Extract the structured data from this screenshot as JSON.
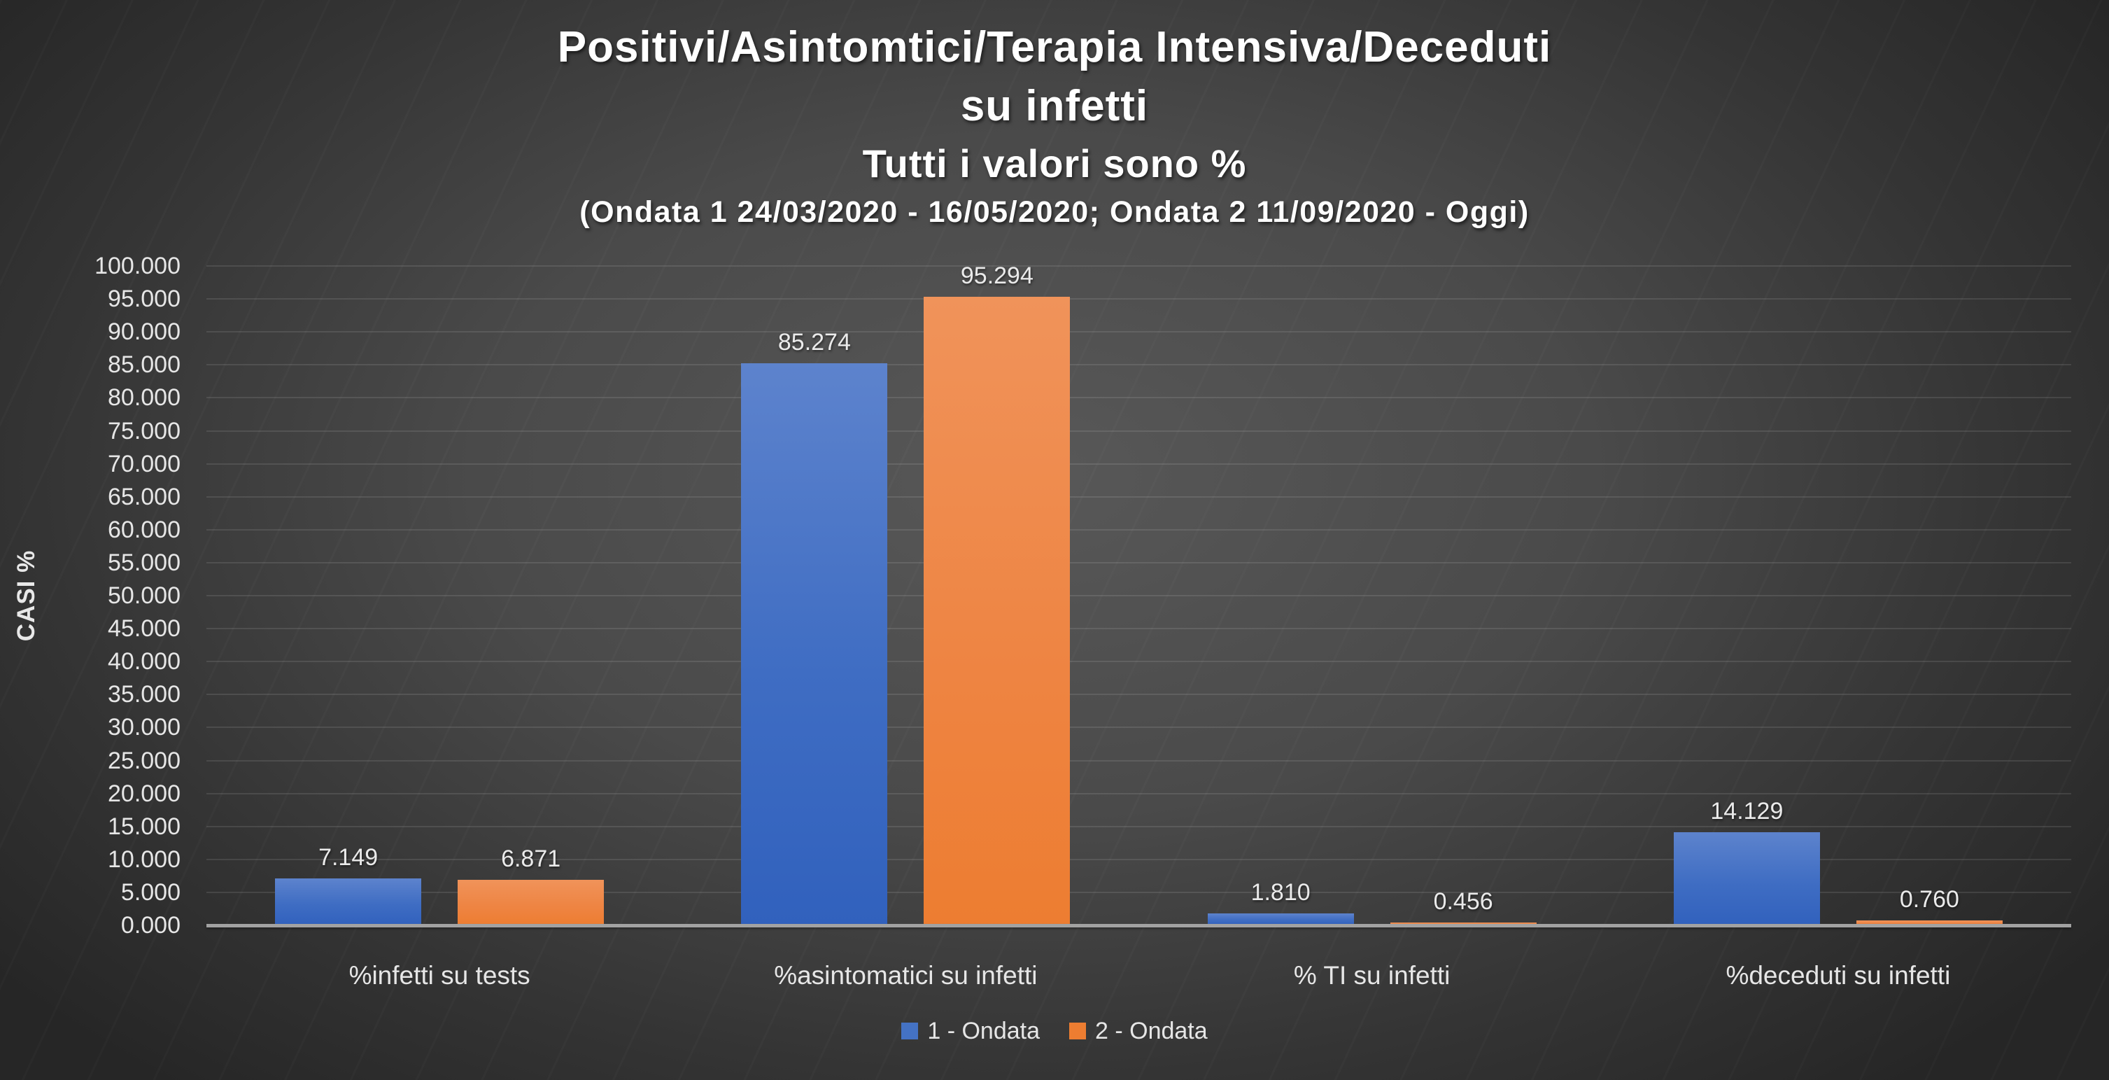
{
  "title": {
    "line1": "Positivi/Asintomtici/Terapia Intensiva/Deceduti",
    "line2": "su infetti",
    "line3": "Tutti i valori sono %",
    "line4": "(Ondata 1 24/03/2020 - 16/05/2020; Ondata 2 11/09/2020 - Oggi)"
  },
  "chart_data": {
    "type": "bar",
    "categories": [
      "%infetti su tests",
      "%asintomatici su infetti",
      "% TI su infetti",
      "%deceduti su infetti"
    ],
    "series": [
      {
        "name": "1 - Ondata",
        "color": "#4472c4",
        "values": [
          7.149,
          85.274,
          1.81,
          14.129
        ],
        "labels": [
          "7.149",
          "85.274",
          "1.810",
          "14.129"
        ]
      },
      {
        "name": "2 - Ondata",
        "color": "#ed7d31",
        "values": [
          6.871,
          95.294,
          0.456,
          0.76
        ],
        "labels": [
          "6.871",
          "95.294",
          "0.456",
          "0.760"
        ]
      }
    ],
    "xlabel": "",
    "ylabel": "CASI %",
    "ylim": [
      0,
      100
    ],
    "ytick_step": 5,
    "ytick_labels": [
      "0.000",
      "5.000",
      "10.000",
      "15.000",
      "20.000",
      "25.000",
      "30.000",
      "35.000",
      "40.000",
      "45.000",
      "50.000",
      "55.000",
      "60.000",
      "65.000",
      "70.000",
      "75.000",
      "80.000",
      "85.000",
      "90.000",
      "95.000",
      "100.000"
    ],
    "grid": "horizontal",
    "legend_position": "bottom"
  },
  "colors": {
    "series1": "#4472c4",
    "series2": "#ed7d31",
    "background_center": "#585858",
    "background_edge": "#262626",
    "gridline": "#646464",
    "axis_line": "#a2a2a2",
    "text": "#e6e6e6",
    "title_text": "#ffffff"
  }
}
